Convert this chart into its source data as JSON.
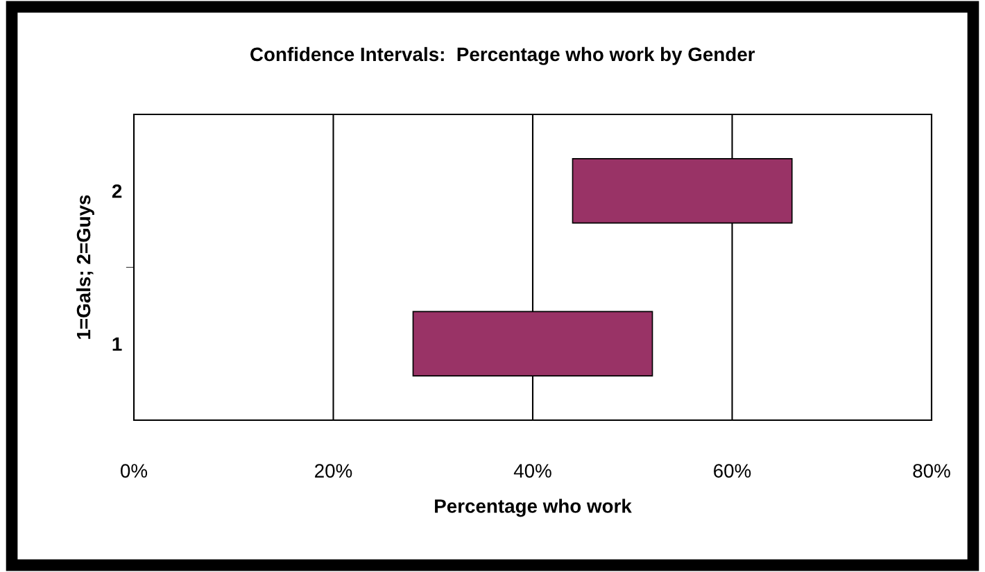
{
  "chart_data": {
    "type": "bar",
    "orientation": "horizontal",
    "title": "Confidence Intervals:  Percentage who work by Gender",
    "xlabel": "Percentage who work",
    "ylabel": "1=Gals; 2=Guys",
    "categories": [
      "2",
      "1"
    ],
    "base": [
      44,
      28
    ],
    "values": [
      22,
      24
    ],
    "color": "#993366",
    "xlim": [
      0,
      80
    ],
    "xticks": [
      {
        "value": 0,
        "label": "0%"
      },
      {
        "value": 20,
        "label": "20%"
      },
      {
        "value": 40,
        "label": "40%"
      },
      {
        "value": 60,
        "label": "60%"
      },
      {
        "value": 80,
        "label": "80%"
      }
    ],
    "grid": "x"
  }
}
